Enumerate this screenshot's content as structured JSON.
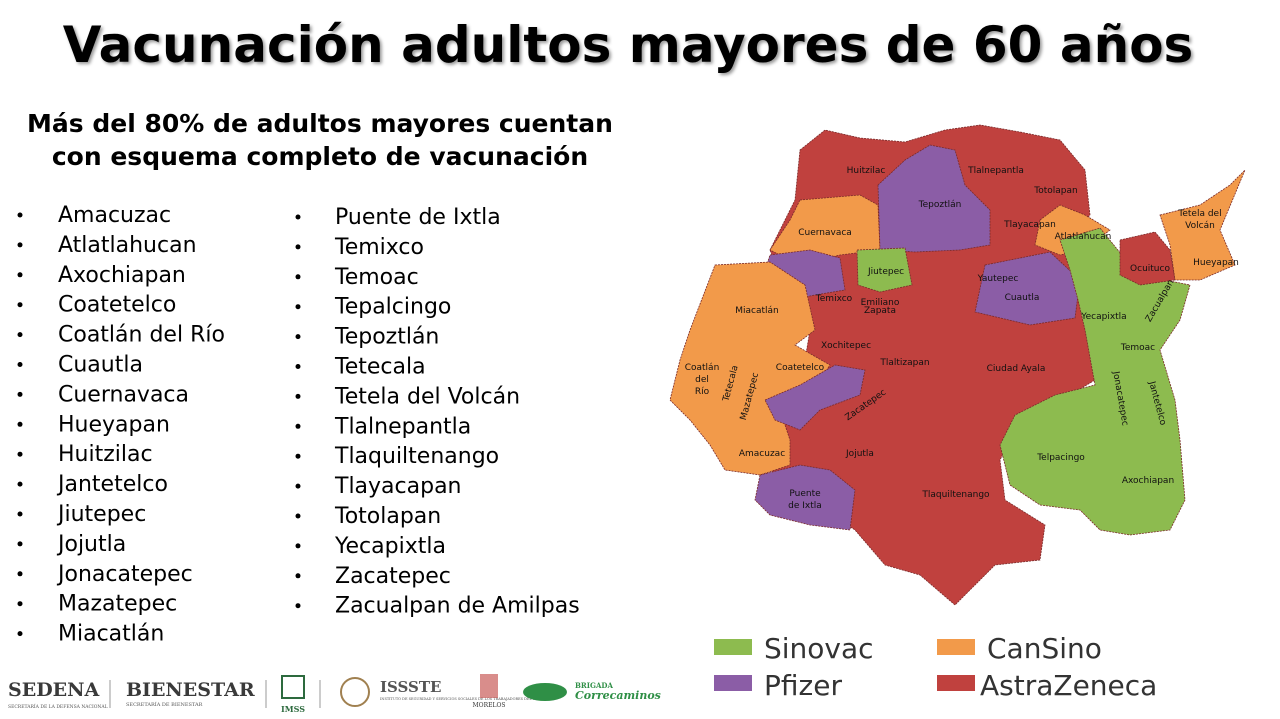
{
  "title": "Vacunación adultos mayores de 60 años",
  "subtitle": [
    "Más del 80% de adultos mayores cuentan",
    "con esquema completo de vacunación"
  ],
  "municipalities": [
    "Amacuzac",
    "Atlatlahucan",
    "Axochiapan",
    "Coatetelco",
    "Coatlán del Río",
    "Cuautla",
    "Cuernavaca",
    "Hueyapan",
    "Huitzilac",
    "Jantetelco",
    "Jiutepec",
    "Jojutla",
    "Jonacatepec",
    "Mazatepec",
    "Miacatlán",
    "Puente de Ixtla",
    "Temixco",
    "Temoac",
    "Tepalcingo",
    "Tepoztlán",
    "Tetecala",
    "Tetela del Volcán",
    "Tlalnepantla",
    "Tlaquiltenango",
    "Tlayacapan",
    "Totolapan",
    "Yecapixtla",
    "Zacatepec",
    "Zacualpan de Amilpas"
  ],
  "map": {
    "labels": [
      [
        "Huitzilac"
      ],
      [
        "Tlalnepantla"
      ],
      [
        "Totolapan"
      ],
      [
        "Tepoztlán"
      ],
      [
        "Tlayacapan"
      ],
      [
        "Atlatlahucan"
      ],
      [
        "Tetela del",
        "Volcán"
      ],
      [
        "Cuernavaca"
      ],
      [
        "Jiutepec"
      ],
      [
        "Yautepec"
      ],
      [
        "Ocuituco"
      ],
      [
        "Hueyapan"
      ],
      [
        "Cuautla"
      ],
      [
        "Miacatlán"
      ],
      [
        "Temixco"
      ],
      [
        "Emiliano",
        "Zapata"
      ],
      [
        "Yecapixtla"
      ],
      [
        "Zacualpan"
      ],
      [
        "Temoac"
      ],
      [
        "Xochitepec"
      ],
      [
        "Tlaltizapan"
      ],
      [
        "Ciudad Ayala"
      ],
      [
        "Coatetelco"
      ],
      [
        "Coatlán",
        "del",
        "Río"
      ],
      [
        "Tetecala"
      ],
      [
        "Mazatepec"
      ],
      [
        "Zacatepec"
      ],
      [
        "Jonacatepec"
      ],
      [
        "Jantetelco"
      ],
      [
        "Amacuzac"
      ],
      [
        "Jojutla"
      ],
      [
        "Telpacingo"
      ],
      [
        "Axochiapan"
      ],
      [
        "Puente",
        "de Ixtla"
      ],
      [
        "Tlaquiltenango"
      ]
    ]
  },
  "legend": [
    "Sinovac",
    "CanSino",
    "Pfizer",
    "AstraZeneca"
  ],
  "footer": [
    "SEDENA",
    "SECRETARÍA DE LA DEFENSA NACIONAL",
    "BIENESTAR",
    "SECRETARÍA DE BIENESTAR",
    "IMSS",
    "ISSSTE",
    "INSTITUTO DE SEGURIDAD Y SERVICIOS SOCIALES DE LOS TRABAJADORES DEL ESTADO",
    "MORELOS",
    "BRIGADA",
    "Correcaminos"
  ]
}
